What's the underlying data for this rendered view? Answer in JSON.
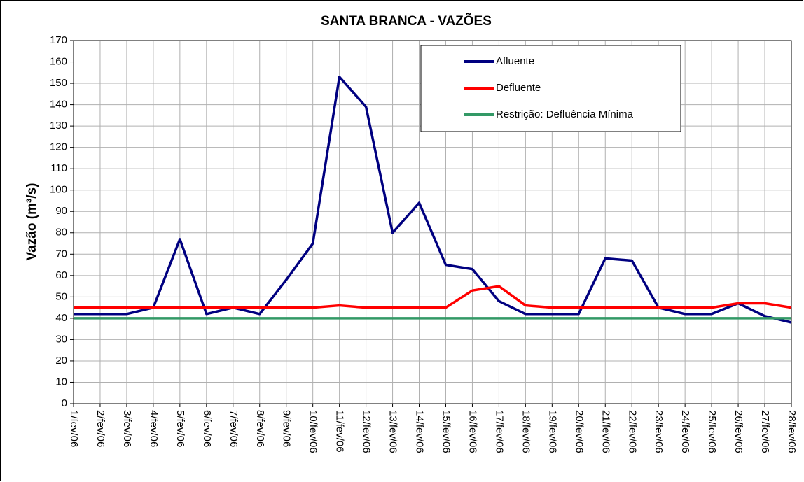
{
  "chart_data": {
    "type": "line",
    "title": "SANTA BRANCA - VAZÕES",
    "y_label": "Vazão (m³/s)",
    "categories": [
      "1/fev/06",
      "2/fev/06",
      "3/fev/06",
      "4/fev/06",
      "5/fev/06",
      "6/fev/06",
      "7/fev/06",
      "8/fev/06",
      "9/fev/06",
      "10/fev/06",
      "11/fev/06",
      "12/fev/06",
      "13/fev/06",
      "14/fev/06",
      "15/fev/06",
      "16/fev/06",
      "17/fev/06",
      "18/fev/06",
      "19/fev/06",
      "20/fev/06",
      "21/fev/06",
      "22/fev/06",
      "23/fev/06",
      "24/fev/06",
      "25/fev/06",
      "26/fev/06",
      "27/fev/06",
      "28/fev/06"
    ],
    "series": [
      {
        "name": "Afluente",
        "color": "#000080",
        "values": [
          42,
          42,
          42,
          45,
          77,
          42,
          45,
          42,
          58,
          75,
          153,
          139,
          80,
          94,
          65,
          63,
          48,
          42,
          42,
          42,
          68,
          67,
          45,
          42,
          42,
          47,
          41,
          38
        ]
      },
      {
        "name": "Defluente",
        "color": "#ff0000",
        "values": [
          45,
          45,
          45,
          45,
          45,
          45,
          45,
          45,
          45,
          45,
          46,
          45,
          45,
          45,
          45,
          53,
          55,
          46,
          45,
          45,
          45,
          45,
          45,
          45,
          45,
          47,
          47,
          45
        ]
      },
      {
        "name": "Restrição: Defluência Mínima",
        "color": "#339966",
        "values": [
          40,
          40,
          40,
          40,
          40,
          40,
          40,
          40,
          40,
          40,
          40,
          40,
          40,
          40,
          40,
          40,
          40,
          40,
          40,
          40,
          40,
          40,
          40,
          40,
          40,
          40,
          40,
          40
        ]
      }
    ],
    "ylim": [
      0,
      170
    ],
    "yticks": [
      0,
      10,
      20,
      30,
      40,
      50,
      60,
      70,
      80,
      90,
      100,
      110,
      120,
      130,
      140,
      150,
      160,
      170
    ],
    "grid": true
  }
}
